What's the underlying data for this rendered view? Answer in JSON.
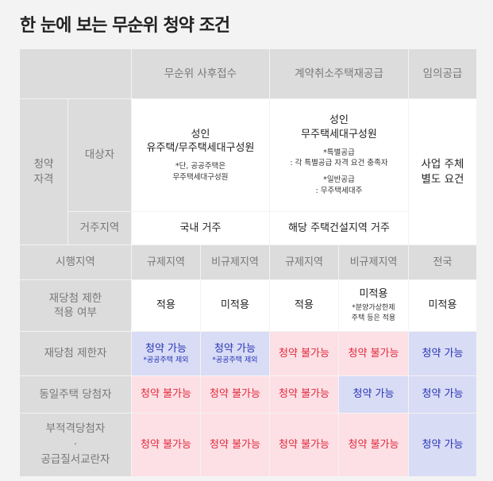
{
  "title": "한 눈에 보는 무순위 청약 조건",
  "columns": {
    "unranked": "무순위 사후접수",
    "cancelled": "계약취소주택재공급",
    "arbitrary": "임의공급"
  },
  "rows": {
    "eligibility": "청약\n자격",
    "target": "대상자",
    "residence": "거주지역",
    "region": "시행지역",
    "rewin": "재당첨 제한\n적용 여부",
    "rewin_restricted": "재당첨 제한자",
    "same_house": "동일주택 당첨자",
    "fraud": "부적격당첨자\n·\n공급질서교란자"
  },
  "target": {
    "unranked_main": "성인\n유주택/무주택세대구성원",
    "unranked_note": "*단, 공공주택은\n무주택세대구성원",
    "cancelled_main": "성인\n무주택세대구성원",
    "cancelled_note1": "*특별공급\n: 각 특별공급 자격 요건 충족자",
    "cancelled_note2": "*일반공급\n: 무주택세대주",
    "arbitrary": "사업 주체\n별도 요건"
  },
  "residence": {
    "unranked": "국내 거주",
    "cancelled": "해당 주택건설지역 거주"
  },
  "region": {
    "regulated": "규제지역",
    "non_regulated": "비규제지역",
    "nationwide": "전국"
  },
  "rewin": {
    "applies": "적용",
    "not_applies": "미적용",
    "cancelled_nonreg_main": "미적용",
    "cancelled_nonreg_note": "*분양가상한제\n주택 등은 적용"
  },
  "status": {
    "possible": "청약 가능",
    "impossible": "청약 불가능",
    "public_excluded": "*공공주택 제외"
  }
}
